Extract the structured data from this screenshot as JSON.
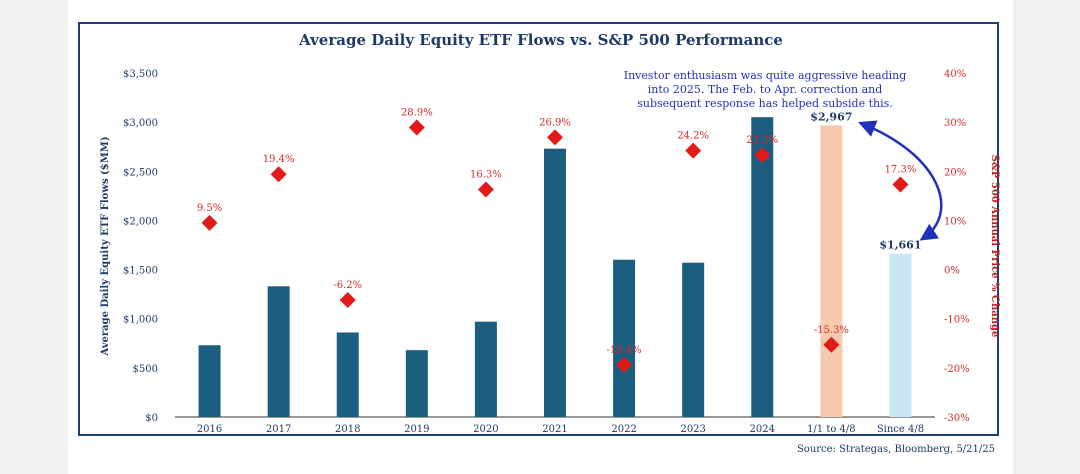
{
  "chart_data": {
    "type": "bar",
    "title": "Average Daily Equity ETF Flows vs. S&P 500 Performance",
    "ylabel": "Average Daily Equity ETF Flows ($MM)",
    "y2label": "S&P 500 Annual Price % Change",
    "ylim": [
      0,
      3500
    ],
    "y2lim": [
      -30,
      40
    ],
    "y_ticks": [
      "$0",
      "$500",
      "$1,000",
      "$1,500",
      "$2,000",
      "$2,500",
      "$3,000",
      "$3,500"
    ],
    "y2_ticks": [
      "-30%",
      "-20%",
      "-10%",
      "0%",
      "10%",
      "20%",
      "30%",
      "40%"
    ],
    "categories": [
      "2016",
      "2017",
      "2018",
      "2019",
      "2020",
      "2021",
      "2022",
      "2023",
      "2024",
      "1/1 to 4/8",
      "Since 4/8"
    ],
    "bar_values": [
      730,
      1330,
      860,
      680,
      970,
      2730,
      1600,
      1570,
      3050,
      2967,
      1661
    ],
    "bar_colors": [
      "#1b5e80",
      "#1b5e80",
      "#1b5e80",
      "#1b5e80",
      "#1b5e80",
      "#1b5e80",
      "#1b5e80",
      "#1b5e80",
      "#1b5e80",
      "#f7c9ad",
      "#c8e6f5"
    ],
    "bar_labels": [
      "",
      "",
      "",
      "",
      "",
      "",
      "",
      "",
      "",
      "$2,967",
      "$1,661"
    ],
    "sp500_change": [
      9.5,
      19.4,
      -6.2,
      28.9,
      16.3,
      26.9,
      -19.4,
      24.2,
      23.3,
      -15.3,
      17.3
    ],
    "sp500_labels": [
      "9.5%",
      "19.4%",
      "-6.2%",
      "28.9%",
      "16.3%",
      "26.9%",
      "-19.4%",
      "24.2%",
      "23.3%",
      "-15.3%",
      "17.3%"
    ],
    "annotation": [
      "Investor enthusiasm was quite aggressive heading",
      "into 2025. The Feb. to Apr. correction and",
      "subsequent response has helped subside this."
    ],
    "source": "Source: Strategas, Bloomberg, 5/21/25",
    "colors": {
      "bars": "#1b5e80",
      "points": "#e31a1a",
      "title": "#1f3a68",
      "annotation": "#2330b8"
    }
  }
}
